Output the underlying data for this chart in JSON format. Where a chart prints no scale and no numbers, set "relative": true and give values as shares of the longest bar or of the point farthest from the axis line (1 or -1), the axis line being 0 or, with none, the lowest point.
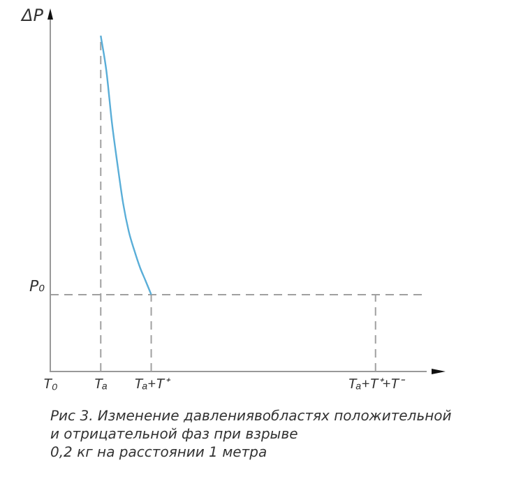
{
  "chart_data": {
    "type": "line",
    "relative": true,
    "ylabel": "ΔP",
    "categories": [
      "T₀",
      null,
      null,
      null,
      null,
      null,
      null,
      null,
      null,
      "Tₐ",
      null,
      null,
      null,
      null,
      null,
      null,
      null,
      null,
      "Tₐ+T⁺",
      null,
      null,
      null,
      null,
      null,
      null,
      null,
      null,
      null,
      null,
      null,
      null,
      null,
      null,
      null,
      null,
      null,
      null,
      null,
      null,
      null,
      null,
      null,
      null,
      null,
      null,
      null,
      null,
      null,
      null,
      null,
      null,
      null,
      null,
      null,
      null,
      null,
      null,
      null,
      "Tₐ+T⁺+T⁻",
      null,
      null,
      null,
      null,
      null,
      null,
      null,
      null,
      null
    ],
    "series": [
      {
        "color": "#5aaed8",
        "values": [
          null,
          null,
          null,
          null,
          null,
          null,
          null,
          null,
          null,
          1,
          0.896,
          0.74,
          0.615,
          0.5,
          0.417,
          0.36,
          0.31,
          0.27,
          0.229,
          null,
          null,
          null,
          null,
          null,
          null,
          null,
          null,
          null,
          null,
          null,
          null,
          null,
          null,
          null,
          null,
          null,
          null,
          null,
          null,
          null,
          null,
          null,
          null,
          null,
          null,
          null,
          null,
          null,
          null,
          null,
          null,
          null,
          null,
          null,
          null,
          null,
          null,
          null,
          null,
          null,
          null,
          null,
          null,
          null,
          null,
          null,
          null,
          null
        ]
      }
    ],
    "ref_lines": [
      {
        "axis": "y",
        "value": 0.229,
        "label": "P₀",
        "color": "#a0a0a0",
        "line_style": "dashed"
      },
      {
        "axis": "x",
        "value": "Tₐ",
        "color": "#a0a0a0",
        "line_style": "dashed"
      },
      {
        "axis": "x",
        "value": "Tₐ+T⁺",
        "color": "#a0a0a0",
        "line_style": "dashed"
      },
      {
        "axis": "x",
        "value": "Tₐ+T⁺+T⁻",
        "color": "#a0a0a0",
        "line_style": "dashed"
      }
    ],
    "grid": false,
    "legend": false,
    "marker": "none",
    "line_style": "solid",
    "annotations": [
      "Рис 3. Изменение давлениявобластях положительной",
      "и отрицательной фаз при взрыве",
      "0,2 кг на расстоянии 1 метра"
    ]
  }
}
